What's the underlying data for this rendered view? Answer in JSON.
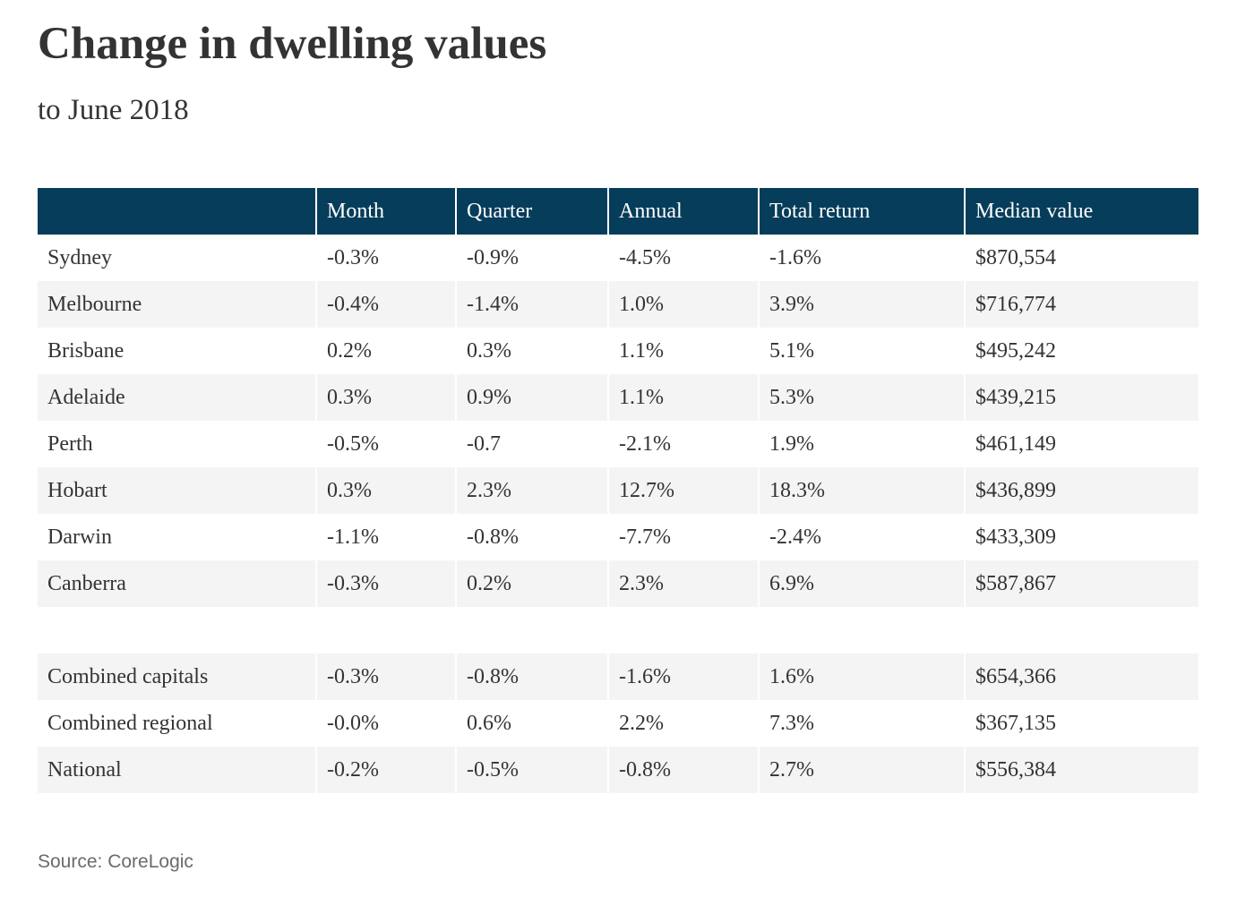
{
  "title": "Change in dwelling values",
  "subtitle": "to June 2018",
  "source": "Source: CoreLogic",
  "colors": {
    "header_bg": "#063d5a",
    "header_text": "#ffffff",
    "row_alt_bg": "#f4f4f4",
    "text": "#333333",
    "source_text": "#6b6b6b"
  },
  "table": {
    "headers": [
      "",
      "Month",
      "Quarter",
      "Annual",
      "Total return",
      "Median value"
    ],
    "rows": [
      [
        "Sydney",
        "-0.3%",
        "-0.9%",
        "-4.5%",
        "-1.6%",
        "$870,554"
      ],
      [
        "Melbourne",
        "-0.4%",
        "-1.4%",
        "1.0%",
        "3.9%",
        "$716,774"
      ],
      [
        "Brisbane",
        "0.2%",
        "0.3%",
        "1.1%",
        "5.1%",
        "$495,242"
      ],
      [
        "Adelaide",
        "0.3%",
        "0.9%",
        "1.1%",
        "5.3%",
        "$439,215"
      ],
      [
        "Perth",
        "-0.5%",
        "-0.7",
        "-2.1%",
        "1.9%",
        "$461,149"
      ],
      [
        "Hobart",
        "0.3%",
        "2.3%",
        "12.7%",
        "18.3%",
        "$436,899"
      ],
      [
        "Darwin",
        "-1.1%",
        "-0.8%",
        "-7.7%",
        "-2.4%",
        "$433,309"
      ],
      [
        "Canberra",
        "-0.3%",
        "0.2%",
        "2.3%",
        "6.9%",
        "$587,867"
      ]
    ],
    "summary_rows": [
      [
        "Combined capitals",
        "-0.3%",
        "-0.8%",
        "-1.6%",
        "1.6%",
        "$654,366"
      ],
      [
        "Combined regional",
        "-0.0%",
        "0.6%",
        "2.2%",
        "7.3%",
        "$367,135"
      ],
      [
        "National",
        "-0.2%",
        "-0.5%",
        "-0.8%",
        "2.7%",
        "$556,384"
      ]
    ]
  },
  "chart_data": {
    "type": "table",
    "title": "Change in dwelling values",
    "subtitle": "to June 2018",
    "columns": [
      "",
      "Month",
      "Quarter",
      "Annual",
      "Total return",
      "Median value"
    ],
    "rows": [
      {
        "region": "Sydney",
        "month": "-0.3%",
        "quarter": "-0.9%",
        "annual": "-4.5%",
        "total_return": "-1.6%",
        "median_value": "$870,554"
      },
      {
        "region": "Melbourne",
        "month": "-0.4%",
        "quarter": "-1.4%",
        "annual": "1.0%",
        "total_return": "3.9%",
        "median_value": "$716,774"
      },
      {
        "region": "Brisbane",
        "month": "0.2%",
        "quarter": "0.3%",
        "annual": "1.1%",
        "total_return": "5.1%",
        "median_value": "$495,242"
      },
      {
        "region": "Adelaide",
        "month": "0.3%",
        "quarter": "0.9%",
        "annual": "1.1%",
        "total_return": "5.3%",
        "median_value": "$439,215"
      },
      {
        "region": "Perth",
        "month": "-0.5%",
        "quarter": "-0.7",
        "annual": "-2.1%",
        "total_return": "1.9%",
        "median_value": "$461,149"
      },
      {
        "region": "Hobart",
        "month": "0.3%",
        "quarter": "2.3%",
        "annual": "12.7%",
        "total_return": "18.3%",
        "median_value": "$436,899"
      },
      {
        "region": "Darwin",
        "month": "-1.1%",
        "quarter": "-0.8%",
        "annual": "-7.7%",
        "total_return": "-2.4%",
        "median_value": "$433,309"
      },
      {
        "region": "Canberra",
        "month": "-0.3%",
        "quarter": "0.2%",
        "annual": "2.3%",
        "total_return": "6.9%",
        "median_value": "$587,867"
      },
      {
        "region": "Combined capitals",
        "month": "-0.3%",
        "quarter": "-0.8%",
        "annual": "-1.6%",
        "total_return": "1.6%",
        "median_value": "$654,366"
      },
      {
        "region": "Combined regional",
        "month": "-0.0%",
        "quarter": "0.6%",
        "annual": "2.2%",
        "total_return": "7.3%",
        "median_value": "$367,135"
      },
      {
        "region": "National",
        "month": "-0.2%",
        "quarter": "-0.5%",
        "annual": "-0.8%",
        "total_return": "2.7%",
        "median_value": "$556,384"
      }
    ],
    "source": "Source: CoreLogic"
  }
}
